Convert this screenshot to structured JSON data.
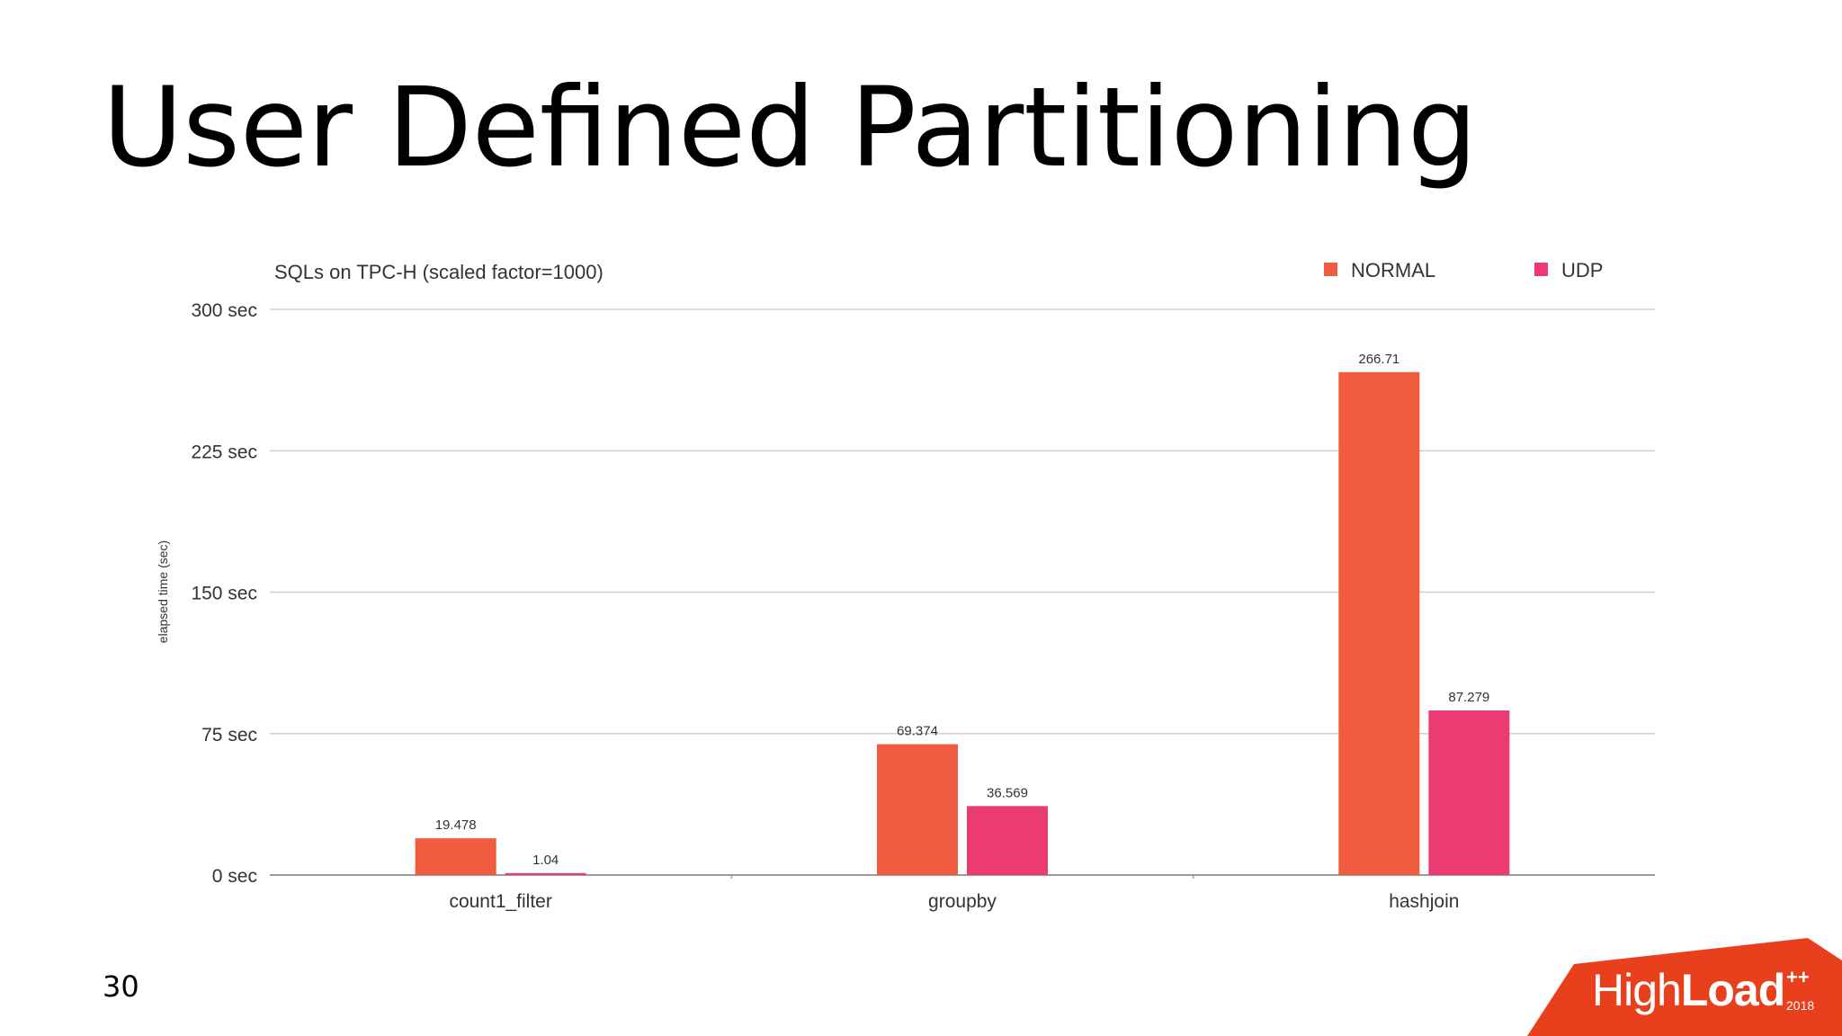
{
  "slide": {
    "title": "User Defined Partitioning",
    "page_number": "30"
  },
  "logo": {
    "brand_light": "High",
    "brand_bold": "Load",
    "superscript": "++",
    "year": "2018",
    "color": "#e8401c"
  },
  "chart_data": {
    "type": "bar",
    "title": "SQLs on TPC-H (scaled factor=1000)",
    "xlabel": "",
    "ylabel": "elapsed time (sec)",
    "categories": [
      "count1_filter",
      "groupby",
      "hashjoin"
    ],
    "series": [
      {
        "name": "NORMAL",
        "values": [
          19.478,
          69.374,
          266.71
        ],
        "labels": [
          "19.478",
          "69.374",
          "266.71"
        ],
        "color": "#f05a3e"
      },
      {
        "name": "UDP",
        "values": [
          1.04,
          36.569,
          87.279
        ],
        "labels": [
          "1.04",
          "36.569",
          "87.279"
        ],
        "color": "#ec3a72"
      }
    ],
    "yticks": [
      0,
      75,
      150,
      225,
      300
    ],
    "ytick_labels": [
      "0 sec",
      "75 sec",
      "150 sec",
      "225 sec",
      "300 sec"
    ],
    "ylim": [
      0,
      300
    ],
    "grid": true,
    "legend_position": "top-right"
  }
}
